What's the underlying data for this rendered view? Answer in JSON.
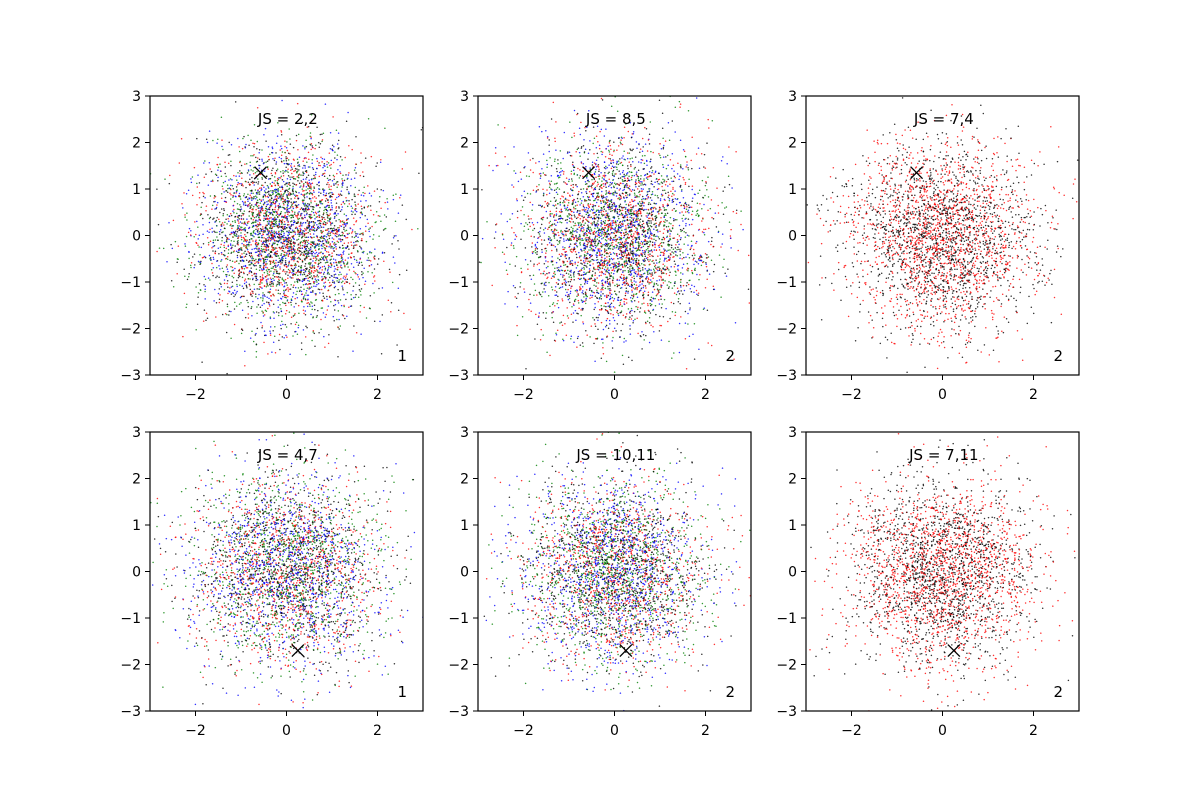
{
  "figure": {
    "background": "#ffffff"
  },
  "chart_data": [
    {
      "type": "scatter",
      "title": "",
      "xlabel": "",
      "ylabel": "",
      "xlim": [
        -3,
        3
      ],
      "ylim": [
        -3,
        3
      ],
      "xticks": [
        -2,
        0,
        2
      ],
      "yticks": [
        -3,
        -2,
        -1,
        0,
        1,
        2,
        3
      ],
      "grid": false,
      "annotation": "JS = 2,2",
      "corner_label": "1",
      "marker": {
        "x": -0.57,
        "y": 1.35,
        "symbol": "x",
        "color": "#000000"
      },
      "cloud": {
        "n_points": 4000,
        "std": 0.95,
        "colors": [
          "#0000ff",
          "#008000",
          "#ff0000",
          "#000000"
        ]
      }
    },
    {
      "type": "scatter",
      "title": "",
      "xlabel": "",
      "ylabel": "",
      "xlim": [
        -3,
        3
      ],
      "ylim": [
        -3,
        3
      ],
      "xticks": [
        -2,
        0,
        2
      ],
      "yticks": [
        -3,
        -2,
        -1,
        0,
        1,
        2,
        3
      ],
      "grid": false,
      "annotation": "JS = 8,5",
      "corner_label": "2",
      "marker": {
        "x": -0.57,
        "y": 1.35,
        "symbol": "x",
        "color": "#000000"
      },
      "cloud": {
        "n_points": 4000,
        "std": 1.0,
        "colors": [
          "#0000ff",
          "#008000",
          "#ff0000",
          "#000000"
        ]
      }
    },
    {
      "type": "scatter",
      "title": "",
      "xlabel": "",
      "ylabel": "",
      "xlim": [
        -3,
        3
      ],
      "ylim": [
        -3,
        3
      ],
      "xticks": [
        -2,
        0,
        2
      ],
      "yticks": [
        -3,
        -2,
        -1,
        0,
        1,
        2,
        3
      ],
      "grid": false,
      "annotation": "JS = 7,4",
      "corner_label": "2",
      "marker": {
        "x": -0.57,
        "y": 1.35,
        "symbol": "x",
        "color": "#000000"
      },
      "cloud": {
        "n_points": 3200,
        "std": 1.0,
        "colors": [
          "#ff0000",
          "#000000"
        ]
      }
    },
    {
      "type": "scatter",
      "title": "",
      "xlabel": "",
      "ylabel": "",
      "xlim": [
        -3,
        3
      ],
      "ylim": [
        -3,
        3
      ],
      "xticks": [
        -2,
        0,
        2
      ],
      "yticks": [
        -3,
        -2,
        -1,
        0,
        1,
        2,
        3
      ],
      "grid": false,
      "annotation": "JS = 4,7",
      "corner_label": "1",
      "marker": {
        "x": 0.25,
        "y": -1.7,
        "symbol": "x",
        "color": "#000000"
      },
      "cloud": {
        "n_points": 4000,
        "std": 1.05,
        "colors": [
          "#0000ff",
          "#008000",
          "#ff0000",
          "#000000"
        ]
      }
    },
    {
      "type": "scatter",
      "title": "",
      "xlabel": "",
      "ylabel": "",
      "xlim": [
        -3,
        3
      ],
      "ylim": [
        -3,
        3
      ],
      "xticks": [
        -2,
        0,
        2
      ],
      "yticks": [
        -3,
        -2,
        -1,
        0,
        1,
        2,
        3
      ],
      "grid": false,
      "annotation": "JS = 10,11",
      "corner_label": "2",
      "marker": {
        "x": 0.25,
        "y": -1.7,
        "symbol": "x",
        "color": "#000000"
      },
      "cloud": {
        "n_points": 4000,
        "std": 1.0,
        "colors": [
          "#0000ff",
          "#008000",
          "#ff0000",
          "#000000"
        ]
      }
    },
    {
      "type": "scatter",
      "title": "",
      "xlabel": "",
      "ylabel": "",
      "xlim": [
        -3,
        3
      ],
      "ylim": [
        -3,
        3
      ],
      "xticks": [
        -2,
        0,
        2
      ],
      "yticks": [
        -3,
        -2,
        -1,
        0,
        1,
        2,
        3
      ],
      "grid": false,
      "annotation": "JS = 7,11",
      "corner_label": "2",
      "marker": {
        "x": 0.25,
        "y": -1.7,
        "symbol": "x",
        "color": "#000000"
      },
      "cloud": {
        "n_points": 3200,
        "std": 1.0,
        "colors": [
          "#ff0000",
          "#000000"
        ]
      }
    }
  ]
}
